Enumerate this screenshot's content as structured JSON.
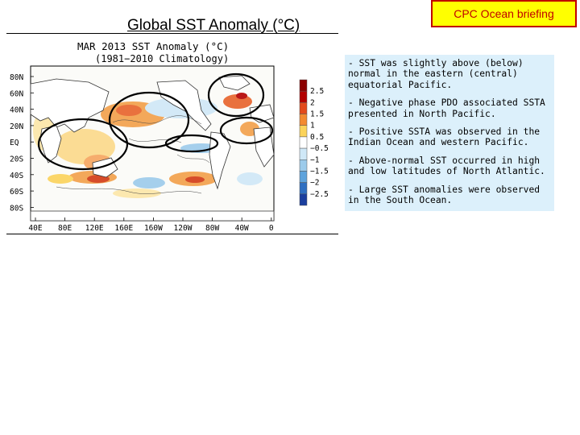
{
  "badge": "CPC Ocean briefing",
  "slide_title": "Global SST Anomaly (°C)",
  "figure": {
    "title_line1": "MAR 2013 SST Anomaly (°C)",
    "title_line2": "(1981−2010 Climatology)",
    "lat_labels": [
      "80N",
      "60N",
      "40N",
      "20N",
      "EQ",
      "20S",
      "40S",
      "60S",
      "80S"
    ],
    "lon_labels": [
      "40E",
      "80E",
      "120E",
      "160E",
      "160W",
      "120W",
      "80W",
      "40W",
      "0"
    ],
    "colorbar": {
      "labels": [
        "2.5",
        "2",
        "1.5",
        "1",
        "0.5",
        "−0.5",
        "−1",
        "−1.5",
        "−2",
        "−2.5"
      ],
      "colors": [
        "#8b0000",
        "#b30000",
        "#e34a1c",
        "#f38a30",
        "#fbd35a",
        "#ffffff",
        "#cfe8f7",
        "#9ccbeb",
        "#5ea3dc",
        "#2f6fc1",
        "#1b3f9e"
      ]
    }
  },
  "notes": [
    "- SST was slightly above (below) normal in the eastern (central) equatorial Pacific.",
    "- Negative phase PDO associated SSTA presented in North Pacific.",
    "- Positive SSTA was observed in the Indian Ocean and western Pacific.",
    "- Above-normal SST occurred in high and low latitudes of North Atlantic.",
    "- Large SST anomalies were observed in the South Ocean."
  ]
}
